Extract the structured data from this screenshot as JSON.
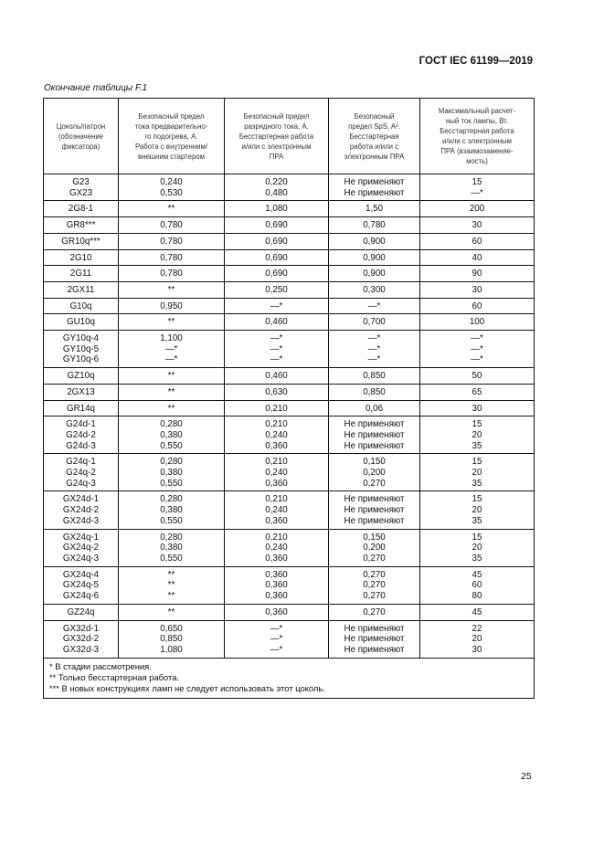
{
  "header": {
    "standard": "ГОСТ IEC 61199—2019",
    "caption": "Окончание таблицы F.1"
  },
  "table": {
    "columns": [
      [
        "Цоколь/патрон",
        "(обозначение",
        "фиксатора)"
      ],
      [
        "Безопасный предел",
        "тока предварительно-",
        "го подогрева, А.",
        "Работа с внутренним/",
        "внешним стартером"
      ],
      [
        "Безопасный предел",
        "разрядного тока, А.",
        "Бесстартерная работа",
        "и/или с электронным",
        "ПРА"
      ],
      [
        "Безопасный",
        "предел SpS, A².",
        "Бесстартерная",
        "работа и/или с",
        "электронным ПРА"
      ],
      [
        "Максимальный расчет-",
        "ный ток лампы, Вт.",
        "Бесстартерная работа",
        "и/или с электронным",
        "ПРА (взаимозаменяе-",
        "мость)"
      ]
    ],
    "rows": [
      [
        [
          "G23",
          "GX23"
        ],
        [
          "0,240",
          "0,530"
        ],
        [
          "0,220",
          "0,480"
        ],
        [
          "Не применяют",
          "Не применяют"
        ],
        [
          "15",
          "—*"
        ]
      ],
      [
        [
          "2G8-1"
        ],
        [
          "**"
        ],
        [
          "1,080"
        ],
        [
          "1,50"
        ],
        [
          "200"
        ]
      ],
      [
        [
          "GR8***"
        ],
        [
          "0,780"
        ],
        [
          "0,690"
        ],
        [
          "0,780"
        ],
        [
          "30"
        ]
      ],
      [
        [
          "GR10q***"
        ],
        [
          "0,780"
        ],
        [
          "0,690"
        ],
        [
          "0,900"
        ],
        [
          "60"
        ]
      ],
      [
        [
          "2G10"
        ],
        [
          "0,780"
        ],
        [
          "0,690"
        ],
        [
          "0,900"
        ],
        [
          "40"
        ]
      ],
      [
        [
          "2G11"
        ],
        [
          "0,780"
        ],
        [
          "0,690"
        ],
        [
          "0,900"
        ],
        [
          "90"
        ]
      ],
      [
        [
          "2GX11"
        ],
        [
          "**"
        ],
        [
          "0,250"
        ],
        [
          "0,300"
        ],
        [
          "30"
        ]
      ],
      [
        [
          "G10q"
        ],
        [
          "0,950"
        ],
        [
          "—*"
        ],
        [
          "—*"
        ],
        [
          "60"
        ]
      ],
      [
        [
          "GU10q"
        ],
        [
          "**"
        ],
        [
          "0,460"
        ],
        [
          "0,700"
        ],
        [
          "100"
        ]
      ],
      [
        [
          "GY10q-4",
          "GY10q-5",
          "GY10q-6"
        ],
        [
          "1,100",
          "—*",
          "—*"
        ],
        [
          "—*",
          "—*",
          "—*"
        ],
        [
          "—*",
          "—*",
          "—*"
        ],
        [
          "—*",
          "—*",
          "—*"
        ]
      ],
      [
        [
          "GZ10q"
        ],
        [
          "**"
        ],
        [
          "0,460"
        ],
        [
          "0,850"
        ],
        [
          "50"
        ]
      ],
      [
        [
          "2GX13"
        ],
        [
          "**"
        ],
        [
          "0,630"
        ],
        [
          "0,850"
        ],
        [
          "65"
        ]
      ],
      [
        [
          "GR14q"
        ],
        [
          "**"
        ],
        [
          "0,210"
        ],
        [
          "0,06"
        ],
        [
          "30"
        ]
      ],
      [
        [
          "G24d-1",
          "G24d-2",
          "G24d-3"
        ],
        [
          "0,280",
          "0,380",
          "0,550"
        ],
        [
          "0,210",
          "0,240",
          "0,360"
        ],
        [
          "Не применяют",
          "Не применяют",
          "Не применяют"
        ],
        [
          "15",
          "20",
          "35"
        ]
      ],
      [
        [
          "G24q-1",
          "G24q-2",
          "G24q-3"
        ],
        [
          "0,280",
          "0,380",
          "0,550"
        ],
        [
          "0,210",
          "0,240",
          "0,360"
        ],
        [
          "0,150",
          "0,200",
          "0,270"
        ],
        [
          "15",
          "20",
          "35"
        ]
      ],
      [
        [
          "GX24d-1",
          "GX24d-2",
          "GX24d-3"
        ],
        [
          "0,280",
          "0,380",
          "0,550"
        ],
        [
          "0,210",
          "0,240",
          "0,360"
        ],
        [
          "Не применяют",
          "Не применяют",
          "Не применяют"
        ],
        [
          "15",
          "20",
          "35"
        ]
      ],
      [
        [
          "GX24q-1",
          "GX24q-2",
          "GX24q-3"
        ],
        [
          "0,280",
          "0,380",
          "0,550"
        ],
        [
          "0,210",
          "0,240",
          "0,360"
        ],
        [
          "0,150",
          "0,200",
          "0,270"
        ],
        [
          "15",
          "20",
          "35"
        ]
      ],
      [
        [
          "GX24q-4",
          "GX24q-5",
          "GX24q-6"
        ],
        [
          "**",
          "**",
          "**"
        ],
        [
          "0,360",
          "0,360",
          "0,360"
        ],
        [
          "0,270",
          "0,270",
          "0,270"
        ],
        [
          "45",
          "60",
          "80"
        ]
      ],
      [
        [
          "GZ24q"
        ],
        [
          "**"
        ],
        [
          "0,360"
        ],
        [
          "0,270"
        ],
        [
          "45"
        ]
      ],
      [
        [
          "GX32d-1",
          "GX32d-2",
          "GX32d-3"
        ],
        [
          "0,650",
          "0,850",
          "1,080"
        ],
        [
          "—*",
          "—*",
          "—*"
        ],
        [
          "Не применяют",
          "Не применяют",
          "Не применяют"
        ],
        [
          "22",
          "20",
          "30"
        ]
      ]
    ],
    "footnotes": [
      "* В стадии рассмотрения.",
      "** Только бесстартерная работа.",
      "*** В новых конструкциях ламп не следует использовать этот цоколь."
    ]
  },
  "footer": {
    "page_number": "25"
  }
}
